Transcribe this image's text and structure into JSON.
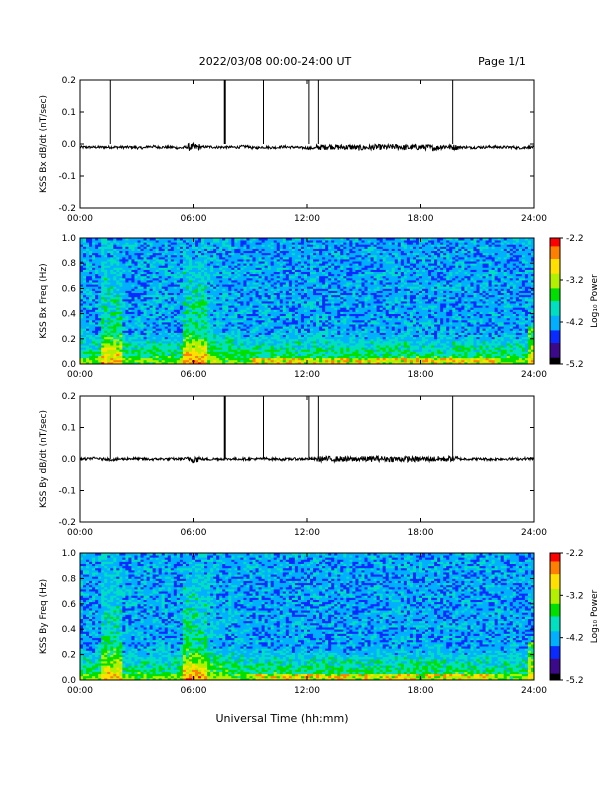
{
  "header": {
    "title": "2022/03/08  00:00-24:00 UT",
    "page": "Page 1/1"
  },
  "footer": {
    "xlabel": "Universal Time (hh:mm)"
  },
  "colorscale": [
    "#000000",
    "#3b0a8a",
    "#0a2bff",
    "#00b0ff",
    "#00e0c0",
    "#00e000",
    "#b0f000",
    "#ffe000",
    "#ff8000",
    "#ff0000"
  ],
  "chart_data": [
    {
      "type": "line",
      "ylabel": "KSS Bx dB/dt (nT/sec)",
      "xlim": [
        0,
        24
      ],
      "ylim": [
        -0.2,
        0.2
      ],
      "x_ticks": [
        "00:00",
        "06:00",
        "12:00",
        "18:00",
        "24:00"
      ],
      "y_ticks": [
        "0.2",
        "0.1",
        "0.0",
        "-0.1",
        "-0.2"
      ],
      "series": [
        {
          "values": [
            -0.01,
            -0.01,
            -0.01,
            -0.01,
            -0.01,
            -0.01,
            -0.012,
            -0.008,
            -0.01,
            -0.01,
            -0.012,
            -0.01,
            -0.01,
            -0.009,
            -0.01,
            -0.01,
            -0.01,
            -0.008,
            -0.012,
            -0.01,
            -0.011,
            -0.009,
            -0.01,
            -0.012,
            -0.013,
            -0.01,
            -0.008,
            -0.01,
            -0.01,
            -0.012,
            -0.011,
            -0.01,
            -0.01,
            -0.009,
            -0.011,
            -0.01,
            -0.01,
            -0.012,
            -0.008,
            -0.01,
            -0.01,
            -0.011,
            -0.01,
            -0.009,
            -0.01,
            -0.01,
            -0.012,
            -0.01,
            -0.009
          ]
        }
      ],
      "spikes_hours": [
        1.6,
        7.65,
        9.7,
        12.1,
        12.6,
        19.7
      ]
    },
    {
      "type": "heatmap",
      "ylabel": "KSS Bx Freq (Hz)",
      "xlim": [
        0,
        24
      ],
      "ylim": [
        0.0,
        1.0
      ],
      "x_ticks": [
        "00:00",
        "06:00",
        "12:00",
        "18:00",
        "24:00"
      ],
      "y_ticks": [
        "1.0",
        "0.8",
        "0.6",
        "0.4",
        "0.2",
        "0.0"
      ],
      "colorbar": {
        "label": "Log₁₀ Power",
        "ticks": [
          "-2.2",
          "-3.2",
          "-4.2",
          "-5.2"
        ],
        "range": [
          -5.2,
          -2.2
        ]
      }
    },
    {
      "type": "line",
      "ylabel": "KSS By dB/dt (nT/sec)",
      "xlim": [
        0,
        24
      ],
      "ylim": [
        -0.2,
        0.2
      ],
      "x_ticks": [
        "00:00",
        "06:00",
        "12:00",
        "18:00",
        "24:00"
      ],
      "y_ticks": [
        "0.2",
        "0.1",
        "0.0",
        "-0.1",
        "-0.2"
      ],
      "series": [
        {
          "values": [
            0.0,
            0.002,
            0.0,
            -0.002,
            0.0,
            0.001,
            0.0,
            -0.001,
            0.0,
            0.0,
            0.0,
            0.001,
            0.0,
            -0.001,
            0.0,
            0.0,
            0.0,
            0.0,
            0.0,
            0.001,
            0.0,
            -0.001,
            0.0,
            0.0,
            0.0,
            0.0,
            0.0,
            0.0,
            -0.001,
            0.0,
            0.0,
            0.001,
            0.0,
            0.0,
            0.0,
            -0.001,
            0.0,
            0.0,
            0.0,
            0.001,
            0.0,
            0.0,
            0.0,
            -0.001,
            0.0,
            0.0,
            0.0,
            0.001,
            0.0
          ]
        }
      ],
      "spikes_hours": [
        1.6,
        7.65,
        9.7,
        12.1,
        12.6,
        19.7
      ]
    },
    {
      "type": "heatmap",
      "ylabel": "KSS By Freq (Hz)",
      "xlim": [
        0,
        24
      ],
      "ylim": [
        0.0,
        1.0
      ],
      "x_ticks": [
        "00:00",
        "06:00",
        "12:00",
        "18:00",
        "24:00"
      ],
      "y_ticks": [
        "1.0",
        "0.8",
        "0.6",
        "0.4",
        "0.2",
        "0.0"
      ],
      "colorbar": {
        "label": "Log₁₀ Power",
        "ticks": [
          "-2.2",
          "-3.2",
          "-4.2",
          "-5.2"
        ],
        "range": [
          -5.2,
          -2.2
        ]
      }
    }
  ]
}
